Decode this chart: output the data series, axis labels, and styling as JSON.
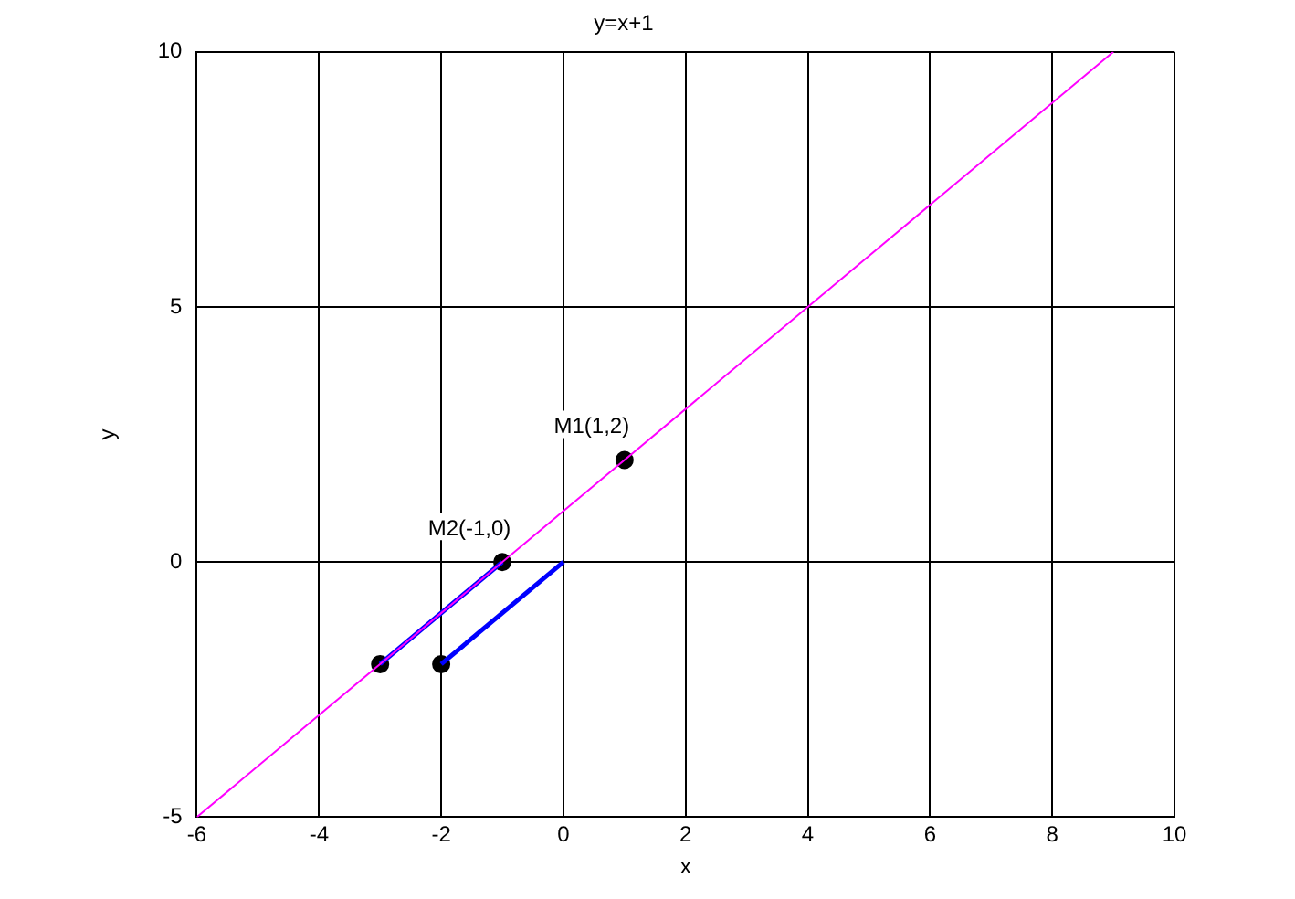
{
  "chart_data": {
    "type": "line",
    "title": "y=x+1",
    "xlabel": "x",
    "ylabel": "y",
    "xlim": [
      -6,
      10
    ],
    "xticks": [
      -6,
      -4,
      -2,
      0,
      2,
      4,
      6,
      8,
      10
    ],
    "ylim": [
      -5,
      10
    ],
    "yticks": [
      -5,
      0,
      5,
      10
    ],
    "grid": true,
    "legend": false,
    "line_style": "solid",
    "series": [
      {
        "color": "#ff00ff",
        "x": [
          -6,
          9
        ],
        "values": [
          -5,
          10
        ],
        "marker": "none"
      },
      {
        "color": "#0000ff",
        "x": [
          -3,
          -1
        ],
        "values": [
          -2,
          0
        ],
        "marker": "none"
      },
      {
        "color": "#0000ff",
        "x": [
          -2,
          0
        ],
        "values": [
          -2,
          0
        ],
        "marker": "none"
      },
      {
        "type": "scatter",
        "color": "#000000",
        "x": [
          -3,
          -2
        ],
        "values": [
          -2,
          -2
        ],
        "marker": "circle"
      },
      {
        "type": "scatter",
        "color": "#000000",
        "x": [
          1,
          -1
        ],
        "values": [
          2,
          0
        ],
        "marker": "circle"
      }
    ],
    "annotations": [
      {
        "text": "M1(1,2)",
        "x": 1,
        "y": 2
      },
      {
        "text": "M2(-1,0)",
        "x": -1,
        "y": 0
      }
    ]
  }
}
